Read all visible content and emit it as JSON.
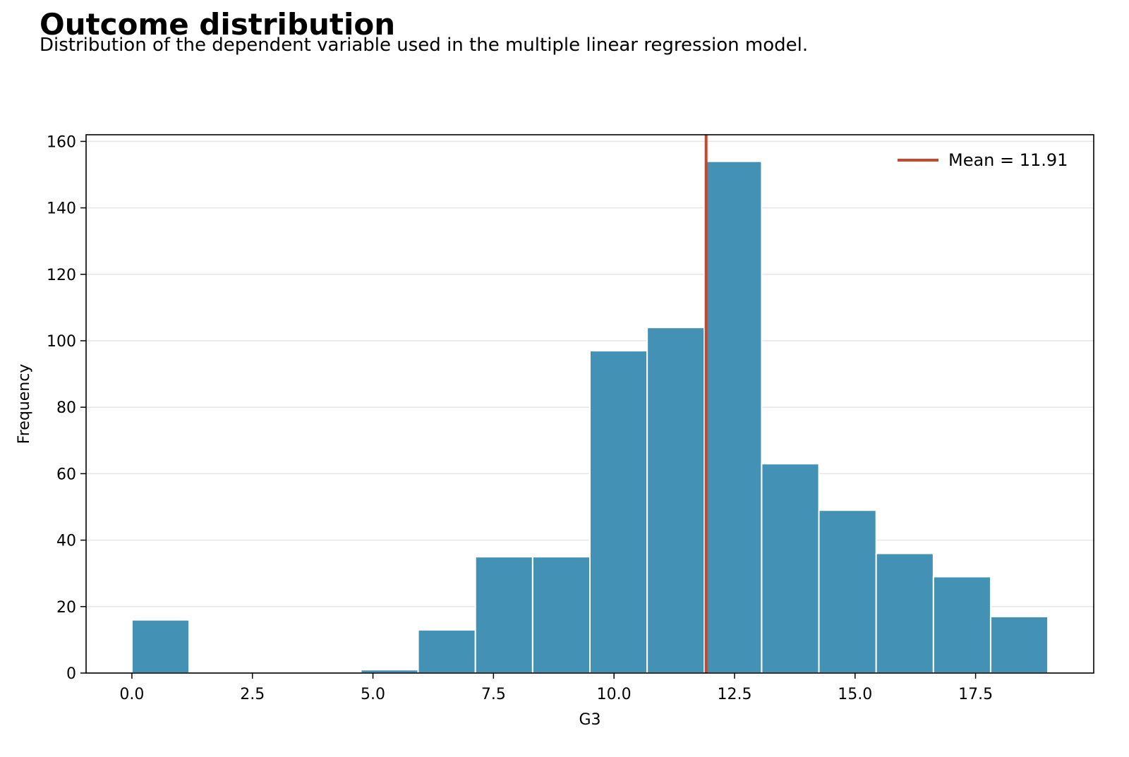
{
  "title": "Outcome distribution",
  "subtitle": "Distribution of the dependent variable used in the multiple linear regression model.",
  "chart_data": {
    "type": "bar",
    "xlabel": "G3",
    "ylabel": "Frequency",
    "xlim": [
      -0.95,
      19.95
    ],
    "ylim": [
      0,
      162
    ],
    "xticks": [
      "0.0",
      "2.5",
      "5.0",
      "7.5",
      "10.0",
      "12.5",
      "15.0",
      "17.5"
    ],
    "xtick_values": [
      0,
      2.5,
      5,
      7.5,
      10,
      12.5,
      15,
      17.5
    ],
    "yticks": [
      "0",
      "20",
      "40",
      "60",
      "80",
      "100",
      "120",
      "140",
      "160"
    ],
    "ytick_values": [
      0,
      20,
      40,
      60,
      80,
      100,
      120,
      140,
      160
    ],
    "bin_edges": [
      0,
      1.1875,
      2.375,
      3.5625,
      4.75,
      5.9375,
      7.125,
      8.3125,
      9.5,
      10.6875,
      11.875,
      13.0625,
      14.25,
      15.4375,
      16.625,
      17.8125,
      19
    ],
    "values": [
      16,
      0,
      0,
      0,
      1,
      13,
      35,
      35,
      97,
      104,
      154,
      63,
      49,
      36,
      29,
      17
    ],
    "bar_color": "#4391b5",
    "mean": 11.91,
    "mean_color": "#c8472a",
    "legend": {
      "label": "Mean = 11.91",
      "placement": "upper right"
    },
    "grid": "horizontal"
  }
}
